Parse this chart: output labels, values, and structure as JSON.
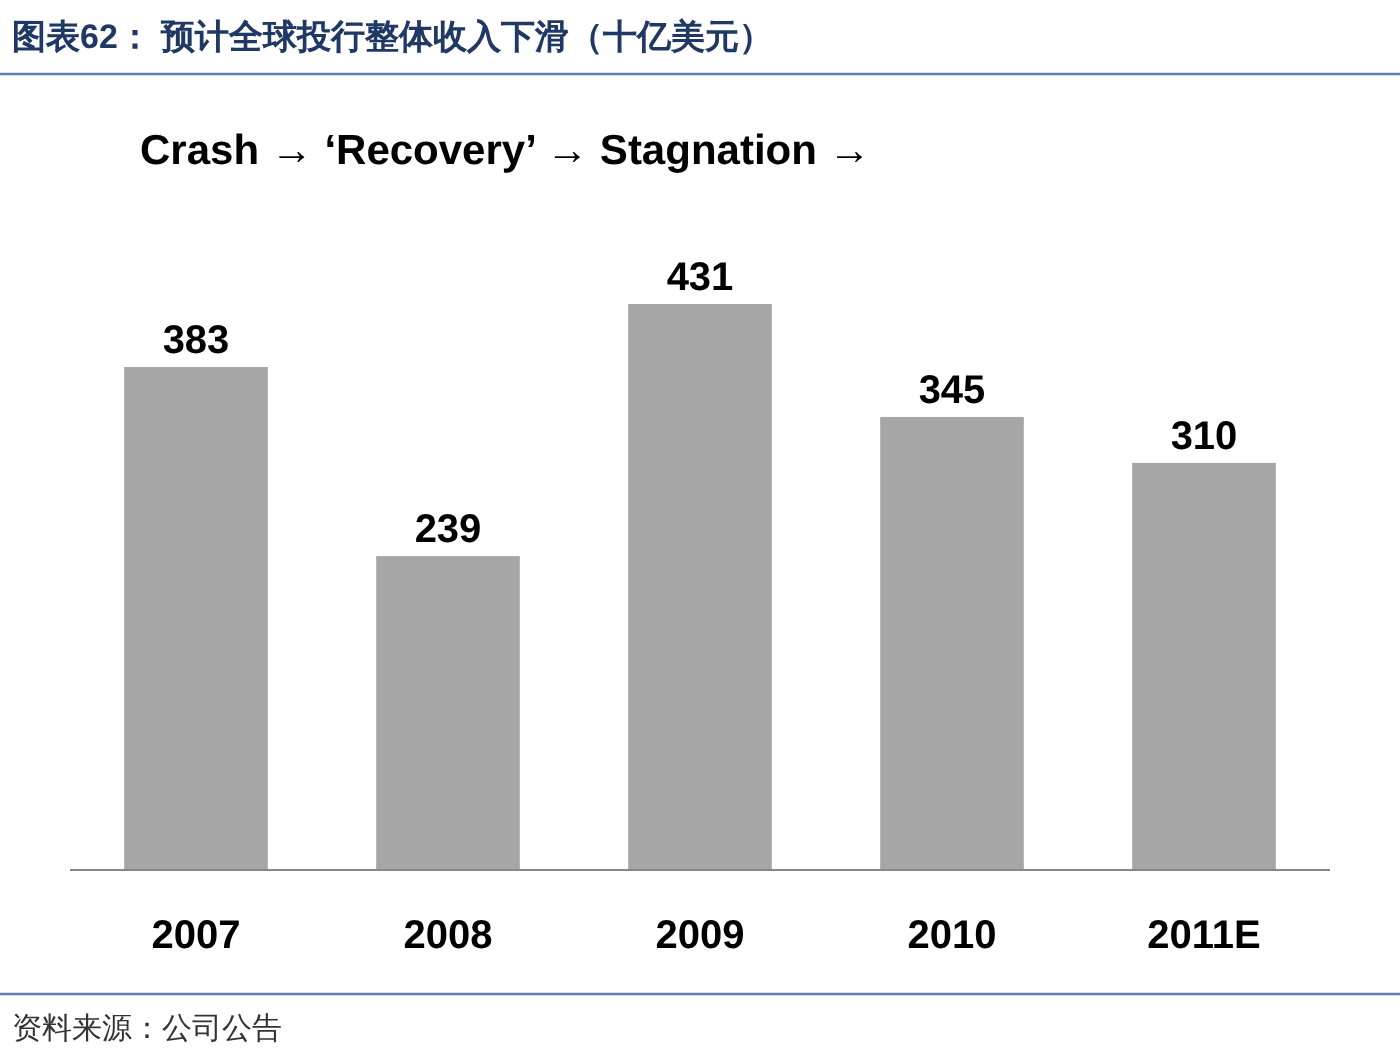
{
  "chart_data": {
    "type": "bar",
    "title": "图表62： 预计全球投行整体收入下滑（十亿美元）",
    "categories": [
      "2007",
      "2008",
      "2009",
      "2010",
      "2011E"
    ],
    "values": [
      383,
      239,
      431,
      345,
      310
    ],
    "color": "#a6a6a6",
    "data_labels": true,
    "annotations": [
      "Crash → ‘Recovery’ → Stagnation →",
      "资料来源：公司公告"
    ]
  }
}
